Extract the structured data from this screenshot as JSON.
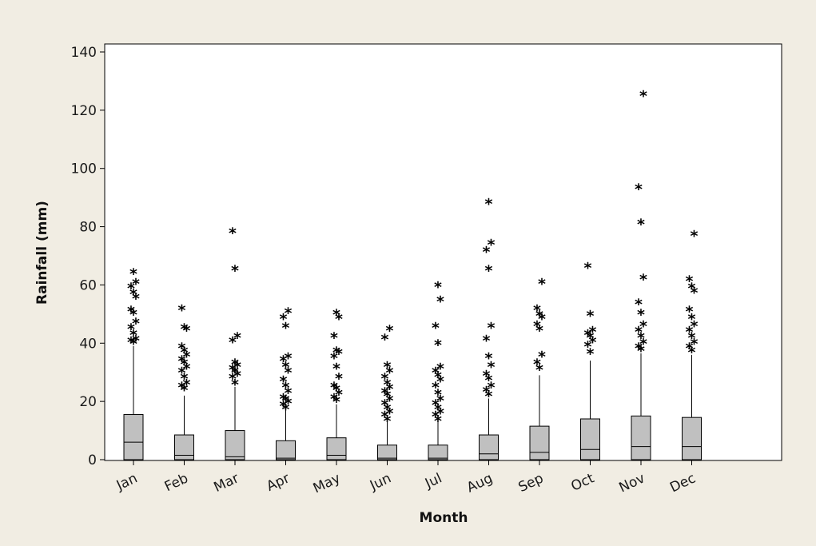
{
  "chart_data": {
    "type": "box",
    "xlabel": "Month",
    "ylabel": "Rainfall (mm)",
    "ylim": [
      0,
      140
    ],
    "yticks": [
      0,
      20,
      40,
      60,
      80,
      100,
      120,
      140
    ],
    "categories": [
      "Jan",
      "Feb",
      "Mar",
      "Apr",
      "May",
      "Jun",
      "Jul",
      "Aug",
      "Sep",
      "Oct",
      "Nov",
      "Dec"
    ],
    "colors": {
      "box_fill": "#c0c0c0",
      "plot_bg": "#ffffff",
      "frame_bg": "#f1ede3"
    },
    "boxes": [
      {
        "month": "Jan",
        "min": 0,
        "q1": 0,
        "median": 6,
        "q3": 15.5,
        "whisker_high": 39,
        "outliers": [
          40,
          40.5,
          41,
          43,
          45,
          47,
          50,
          51,
          55.5,
          57,
          59,
          60.5,
          64
        ]
      },
      {
        "month": "Feb",
        "min": 0,
        "q1": 0,
        "median": 1.5,
        "q3": 8.5,
        "whisker_high": 22,
        "outliers": [
          24,
          25,
          26,
          28,
          30,
          31.5,
          33,
          34,
          35.5,
          37,
          38.5,
          44.5,
          45,
          51.5
        ]
      },
      {
        "month": "Mar",
        "min": 0,
        "q1": 0,
        "median": 1,
        "q3": 10,
        "whisker_high": 25,
        "outliers": [
          26,
          28,
          29,
          30,
          31,
          32,
          33,
          40.5,
          42,
          65,
          78
        ]
      },
      {
        "month": "Apr",
        "min": 0,
        "q1": 0,
        "median": 0.5,
        "q3": 6.5,
        "whisker_high": 17,
        "outliers": [
          17.5,
          18.5,
          19.5,
          20.5,
          21,
          23,
          25,
          27,
          30,
          32,
          34,
          35,
          45.5,
          48.5,
          50.5
        ]
      },
      {
        "month": "May",
        "min": 0,
        "q1": 0,
        "median": 1.5,
        "q3": 7.5,
        "whisker_high": 19,
        "outliers": [
          20,
          21,
          22.5,
          24,
          25,
          28,
          31.5,
          35,
          36.5,
          37,
          42,
          48.5,
          50
        ]
      },
      {
        "month": "Jun",
        "min": 0,
        "q1": 0,
        "median": 0.5,
        "q3": 5,
        "whisker_high": 13,
        "outliers": [
          13.5,
          15,
          16,
          17.5,
          19,
          20.5,
          22,
          23,
          24.5,
          26,
          28,
          30,
          32,
          41.5,
          44.5
        ]
      },
      {
        "month": "Jul",
        "min": 0,
        "q1": 0,
        "median": 0.5,
        "q3": 5,
        "whisker_high": 13,
        "outliers": [
          13.5,
          15,
          16,
          17.5,
          19,
          20.5,
          22.5,
          25,
          27,
          28.5,
          30,
          31.5,
          39.5,
          45.5,
          54.5,
          59.5
        ]
      },
      {
        "month": "Aug",
        "min": 0,
        "q1": 0,
        "median": 2,
        "q3": 8.5,
        "whisker_high": 21,
        "outliers": [
          22,
          23.5,
          25,
          27.5,
          29,
          32,
          35,
          41,
          45.5,
          65,
          71.5,
          74,
          88
        ]
      },
      {
        "month": "Sep",
        "min": 0,
        "q1": 0,
        "median": 2.5,
        "q3": 11.5,
        "whisker_high": 29,
        "outliers": [
          31,
          33,
          35.5,
          44.5,
          46,
          48.5,
          49.5,
          51.5,
          60.5
        ]
      },
      {
        "month": "Oct",
        "min": 0,
        "q1": 0,
        "median": 3.5,
        "q3": 14,
        "whisker_high": 34,
        "outliers": [
          36.5,
          39,
          40.5,
          42,
          43,
          44,
          49.5,
          66
        ]
      },
      {
        "month": "Nov",
        "min": 0,
        "q1": 0,
        "median": 4.5,
        "q3": 15,
        "whisker_high": 36.5,
        "outliers": [
          37.5,
          38.5,
          40,
          42,
          44,
          46,
          50,
          53.5,
          62,
          81,
          93,
          125
        ]
      },
      {
        "month": "Dec",
        "min": 0,
        "q1": 0,
        "median": 4.5,
        "q3": 14.5,
        "whisker_high": 36,
        "outliers": [
          37,
          38.5,
          40,
          42,
          44,
          46,
          48.5,
          51,
          57.5,
          59,
          61.5,
          77
        ]
      }
    ]
  }
}
